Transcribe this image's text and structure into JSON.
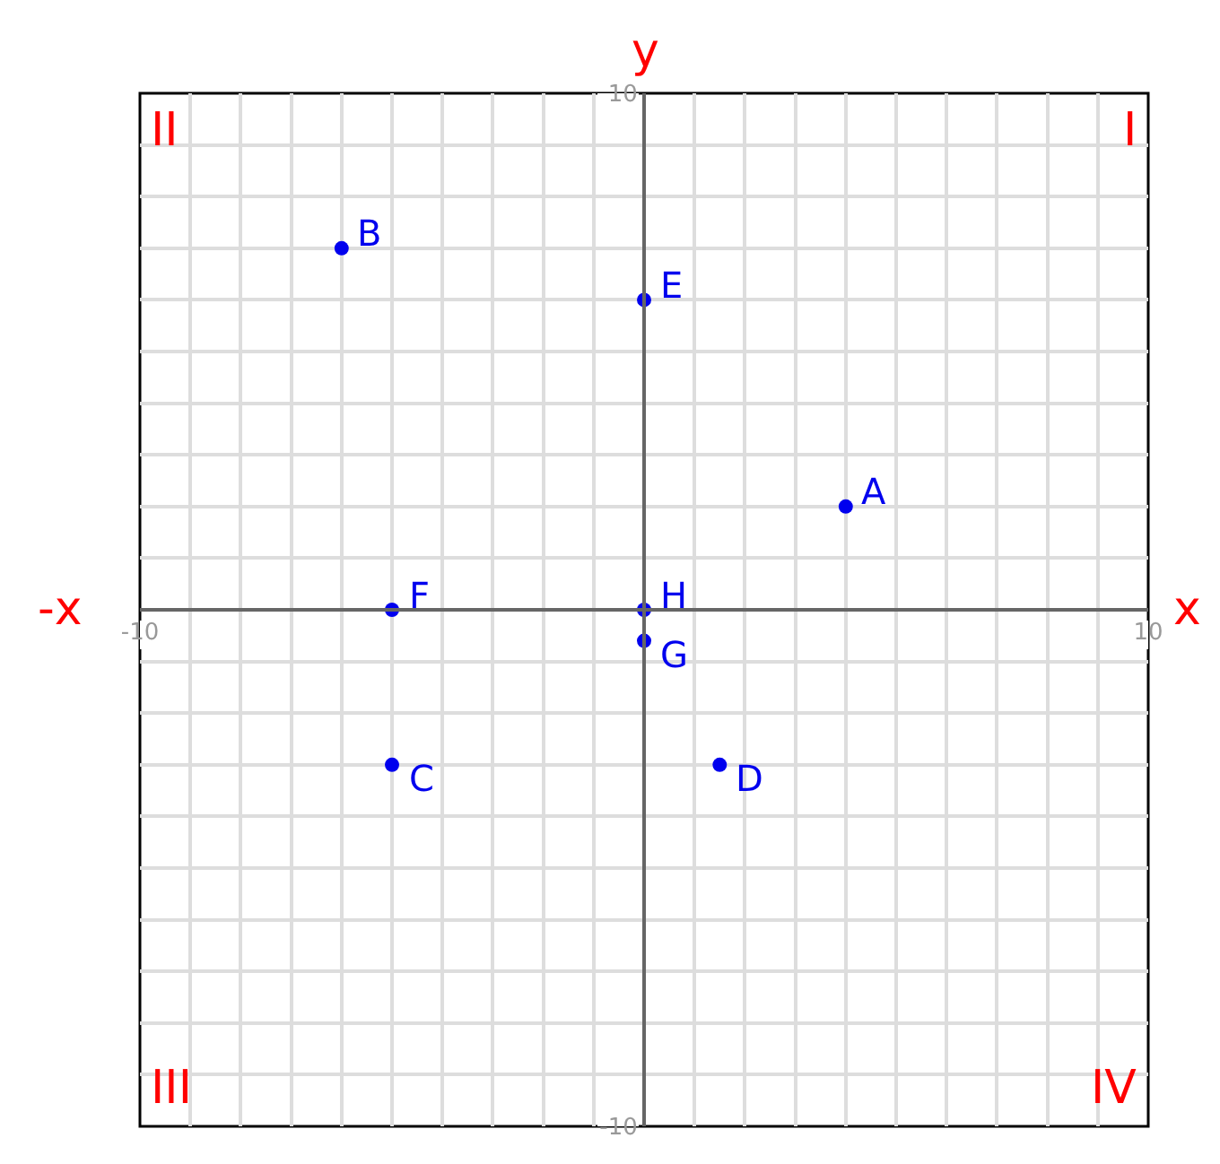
{
  "chart_data": {
    "type": "scatter",
    "xlabel": "x",
    "ylabel": "y",
    "x": [
      4,
      -6,
      -5,
      1.5,
      0,
      -5,
      0,
      0
    ],
    "values": [
      2,
      7,
      -3,
      -3,
      6,
      0,
      -0.6,
      0
    ],
    "color": "#0000ee",
    "marker": "circle",
    "grid": true,
    "xlim": [
      -10,
      10
    ],
    "ylim": [
      -10,
      10
    ],
    "xticks": [
      {
        "value": -10,
        "label": "-10"
      },
      {
        "value": -9,
        "label": null
      },
      {
        "value": -8,
        "label": null
      },
      {
        "value": -7,
        "label": null
      },
      {
        "value": -6,
        "label": null
      },
      {
        "value": -5,
        "label": null
      },
      {
        "value": -4,
        "label": null
      },
      {
        "value": -3,
        "label": null
      },
      {
        "value": -2,
        "label": null
      },
      {
        "value": -1,
        "label": null
      },
      {
        "value": 0,
        "label": null
      },
      {
        "value": 1,
        "label": null
      },
      {
        "value": 2,
        "label": null
      },
      {
        "value": 3,
        "label": null
      },
      {
        "value": 4,
        "label": null
      },
      {
        "value": 5,
        "label": null
      },
      {
        "value": 6,
        "label": null
      },
      {
        "value": 7,
        "label": null
      },
      {
        "value": 8,
        "label": null
      },
      {
        "value": 9,
        "label": null
      },
      {
        "value": 10,
        "label": "10"
      }
    ],
    "yticks": [
      {
        "value": -10,
        "label": "-10"
      },
      {
        "value": -9,
        "label": null
      },
      {
        "value": -8,
        "label": null
      },
      {
        "value": -7,
        "label": null
      },
      {
        "value": -6,
        "label": null
      },
      {
        "value": -5,
        "label": null
      },
      {
        "value": -4,
        "label": null
      },
      {
        "value": -3,
        "label": null
      },
      {
        "value": -2,
        "label": null
      },
      {
        "value": -1,
        "label": null
      },
      {
        "value": 0,
        "label": null
      },
      {
        "value": 1,
        "label": null
      },
      {
        "value": 2,
        "label": null
      },
      {
        "value": 3,
        "label": null
      },
      {
        "value": 4,
        "label": null
      },
      {
        "value": 5,
        "label": null
      },
      {
        "value": 6,
        "label": null
      },
      {
        "value": 7,
        "label": null
      },
      {
        "value": 8,
        "label": null
      },
      {
        "value": 9,
        "label": null
      },
      {
        "value": 10,
        "label": "10"
      }
    ],
    "annotations": [
      "I",
      "II",
      "III",
      "IV",
      "-x",
      {
        "text": "A",
        "x": 4,
        "y": 2
      },
      {
        "text": "B",
        "x": -6,
        "y": 7
      },
      {
        "text": "C",
        "x": -5,
        "y": -3
      },
      {
        "text": "D",
        "x": 1.5,
        "y": -3
      },
      {
        "text": "E",
        "x": 0,
        "y": 6
      },
      {
        "text": "F",
        "x": -5,
        "y": 0
      },
      {
        "text": "G",
        "x": 0,
        "y": -0.6
      },
      {
        "text": "H",
        "x": 0,
        "y": 0
      }
    ]
  }
}
